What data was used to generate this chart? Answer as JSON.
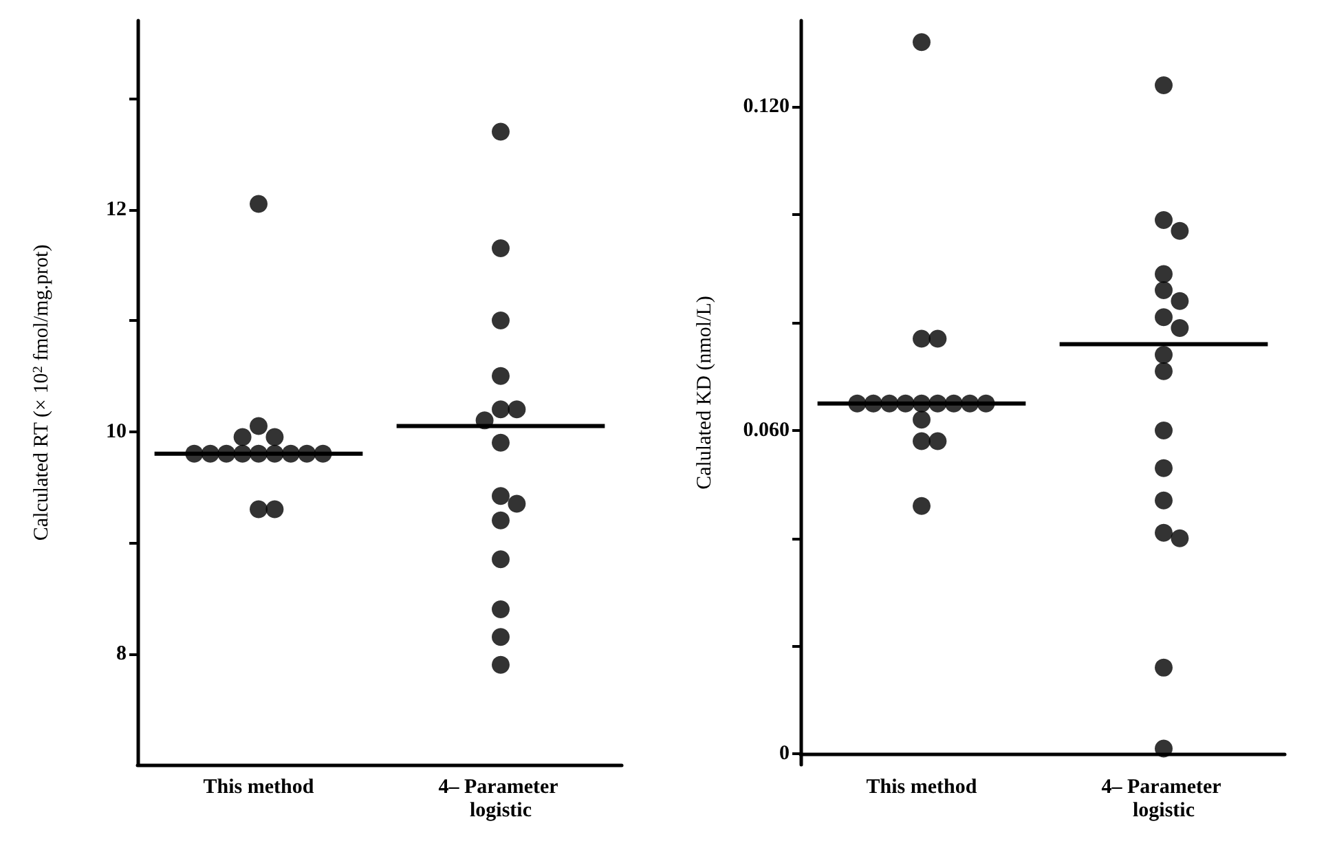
{
  "chart_data": [
    {
      "type": "scatter",
      "ylabel": "Calculated RT (× 10$^{2}$ fmol/mg.prot)",
      "categories": [
        "This method",
        "4– Parameter logistic"
      ],
      "ylim": [
        7,
        13.7
      ],
      "yticks": [
        8,
        {
          "value": 9,
          "label": null
        },
        10,
        {
          "value": 11,
          "label": null
        },
        12,
        {
          "value": 13,
          "label": null
        }
      ],
      "grid": false,
      "marker": "circle",
      "series": [
        {
          "color": "#000000",
          "x": [
            "This method",
            "This method",
            "This method",
            "This method",
            "This method",
            "This method",
            "This method",
            "This method",
            "This method",
            "This method",
            "This method",
            "This method",
            "This method",
            "This method",
            "This method",
            "4– Parameter logistic",
            "4– Parameter logistic",
            "4– Parameter logistic",
            "4– Parameter logistic",
            "4– Parameter logistic",
            "4– Parameter logistic",
            "4– Parameter logistic",
            "4– Parameter logistic",
            "4– Parameter logistic",
            "4– Parameter logistic",
            "4– Parameter logistic",
            "4– Parameter logistic",
            "4– Parameter logistic",
            "4– Parameter logistic",
            "4– Parameter logistic"
          ],
          "values": [
            12.05,
            10.05,
            9.95,
            9.95,
            9.8,
            9.8,
            9.8,
            9.8,
            9.8,
            9.8,
            9.8,
            9.8,
            9.8,
            9.3,
            9.3,
            12.7,
            11.65,
            11.0,
            10.5,
            10.2,
            10.2,
            10.1,
            9.9,
            9.42,
            9.35,
            9.2,
            8.85,
            8.4,
            8.15,
            7.9
          ]
        },
        {
          "type": "box",
          "color": "#000000",
          "boxes": [
            {
              "low": 9.8,
              "q1": 9.8,
              "median": 9.8,
              "q3": 9.8,
              "high": 9.8
            },
            {
              "low": 10.05,
              "q1": 10.05,
              "median": 10.05,
              "q3": 10.05,
              "high": 10.05
            }
          ]
        }
      ]
    },
    {
      "type": "scatter",
      "ylabel": "Calulated KD (nmol/L)",
      "categories": [
        "This method",
        "4– Parameter logistic"
      ],
      "ylim": [
        -0.002,
        0.136
      ],
      "yticks": [
        0,
        {
          "value": 0.02,
          "label": null
        },
        {
          "value": 0.04,
          "label": null
        },
        {
          "value": 0.06,
          "label": "0.060"
        },
        {
          "value": 0.08,
          "label": null
        },
        {
          "value": 0.1,
          "label": null
        },
        {
          "value": 0.12,
          "label": "0.120"
        }
      ],
      "grid": false,
      "marker": "circle",
      "series": [
        {
          "color": "#000000",
          "x": [
            "This method",
            "This method",
            "This method",
            "This method",
            "This method",
            "This method",
            "This method",
            "This method",
            "This method",
            "This method",
            "This method",
            "This method",
            "This method",
            "This method",
            "This method",
            "This method",
            "4– Parameter logistic",
            "4– Parameter logistic",
            "4– Parameter logistic",
            "4– Parameter logistic",
            "4– Parameter logistic",
            "4– Parameter logistic",
            "4– Parameter logistic",
            "4– Parameter logistic",
            "4– Parameter logistic",
            "4– Parameter logistic",
            "4– Parameter logistic",
            "4– Parameter logistic",
            "4– Parameter logistic",
            "4– Parameter logistic",
            "4– Parameter logistic",
            "4– Parameter logistic",
            "4– Parameter logistic"
          ],
          "values": [
            0.132,
            0.077,
            0.077,
            0.065,
            0.065,
            0.065,
            0.065,
            0.065,
            0.065,
            0.065,
            0.065,
            0.065,
            0.062,
            0.058,
            0.058,
            0.046,
            0.124,
            0.099,
            0.097,
            0.089,
            0.086,
            0.084,
            0.081,
            0.079,
            0.074,
            0.071,
            0.06,
            0.053,
            0.047,
            0.041,
            0.04,
            0.016,
            0.001
          ]
        },
        {
          "type": "box",
          "color": "#000000",
          "boxes": [
            {
              "low": 0.065,
              "q1": 0.065,
              "median": 0.065,
              "q3": 0.065,
              "high": 0.065
            },
            {
              "low": 0.076,
              "q1": 0.076,
              "median": 0.076,
              "q3": 0.076,
              "high": 0.076
            }
          ]
        }
      ]
    }
  ]
}
